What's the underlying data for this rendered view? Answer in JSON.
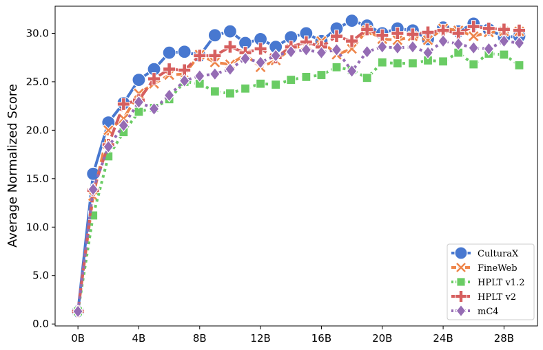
{
  "chart_data": {
    "type": "line",
    "title": "",
    "xlabel": "",
    "ylabel": "Average Normalized Score",
    "x": [
      0,
      1,
      2,
      3,
      4,
      5,
      6,
      7,
      8,
      9,
      10,
      11,
      12,
      13,
      14,
      15,
      16,
      17,
      18,
      19,
      20,
      21,
      22,
      23,
      24,
      25,
      26,
      27,
      28,
      29
    ],
    "x_ticks": [
      0,
      4,
      8,
      12,
      16,
      20,
      24,
      28
    ],
    "x_tick_labels": [
      "0B",
      "4B",
      "8B",
      "12B",
      "16B",
      "20B",
      "24B",
      "28B"
    ],
    "xlim": [
      -1.5,
      30.2
    ],
    "y_ticks": [
      0,
      5,
      10,
      15,
      20,
      25,
      30
    ],
    "y_tick_labels": [
      "0.0",
      "5.0",
      "10.0",
      "15.0",
      "20.0",
      "25.0",
      "30.0"
    ],
    "ylim": [
      -0.2,
      32.8
    ],
    "grid": false,
    "legend_position": "bottom-right",
    "series": [
      {
        "name": "CulturaX",
        "color": "#4878d0",
        "marker": "circle",
        "dash": "solid",
        "values": [
          1.3,
          15.5,
          20.8,
          22.8,
          25.2,
          26.3,
          28.0,
          28.1,
          27.7,
          29.8,
          30.2,
          29.0,
          29.4,
          28.6,
          29.6,
          30.0,
          29.2,
          30.5,
          31.3,
          30.8,
          30.0,
          30.5,
          30.3,
          29.4,
          30.6,
          30.2,
          31.0,
          30.4,
          29.6,
          29.7
        ]
      },
      {
        "name": "FineWeb",
        "color": "#ee854a",
        "marker": "x",
        "dash": "dashed",
        "values": [
          1.3,
          13.2,
          20.0,
          21.2,
          23.8,
          24.8,
          25.7,
          25.8,
          27.8,
          27.0,
          26.8,
          27.8,
          26.5,
          27.2,
          28.4,
          28.8,
          29.2,
          27.8,
          28.4,
          30.3,
          29.4,
          29.3,
          29.7,
          29.3,
          30.5,
          30.3,
          29.7,
          30.1,
          30.2,
          30.2
        ]
      },
      {
        "name": "HPLT v1.2",
        "color": "#6acc64",
        "marker": "square",
        "dash": "dotted",
        "values": [
          1.3,
          11.2,
          17.3,
          19.8,
          21.9,
          22.3,
          23.2,
          25.0,
          24.8,
          24.0,
          23.8,
          24.3,
          24.8,
          24.7,
          25.2,
          25.5,
          25.7,
          26.5,
          26.2,
          25.4,
          27.0,
          26.9,
          26.9,
          27.2,
          27.1,
          28.0,
          26.8,
          27.9,
          27.8,
          26.7
        ]
      },
      {
        "name": "HPLT v2",
        "color": "#d65f5f",
        "marker": "plus",
        "dash": "dashed",
        "values": [
          1.3,
          13.8,
          18.5,
          22.7,
          23.1,
          25.3,
          26.3,
          26.2,
          27.7,
          27.7,
          28.6,
          28.0,
          28.4,
          27.5,
          28.6,
          29.1,
          28.6,
          29.7,
          29.2,
          30.4,
          29.8,
          30.0,
          29.9,
          30.1,
          30.3,
          30.0,
          30.7,
          30.5,
          30.4,
          30.3
        ]
      },
      {
        "name": "mC4",
        "color": "#956cb4",
        "marker": "diamond",
        "dash": "dotted",
        "values": [
          1.3,
          13.9,
          18.3,
          20.5,
          22.9,
          22.2,
          23.6,
          25.1,
          25.6,
          25.8,
          26.3,
          27.4,
          27.0,
          27.7,
          28.1,
          28.3,
          28.0,
          28.3,
          26.1,
          28.1,
          28.6,
          28.5,
          28.6,
          28.0,
          29.2,
          28.9,
          28.5,
          28.4,
          29.2,
          29.0
        ]
      }
    ]
  }
}
